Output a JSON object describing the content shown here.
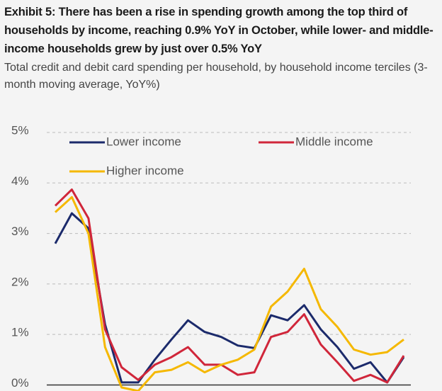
{
  "chart_data": {
    "type": "line",
    "title": "Exhibit 5: There has been a rise in spending growth among the top third of households by income, reaching 0.9% YoY in October, while lower- and middle-income households grew by just over 0.5% YoY",
    "subtitle": "Total credit and debit card spending per household, by household income terciles (3-month moving average, YoY%)",
    "categories": [
      null,
      null,
      null,
      null,
      null,
      null,
      null,
      null,
      null,
      null,
      null,
      null,
      null,
      null,
      null,
      null,
      null,
      null,
      null,
      null,
      null,
      null
    ],
    "series": [
      {
        "name": "Lower income",
        "color": "#1b2a6b",
        "values": [
          2.8,
          3.4,
          3.1,
          1.2,
          0.05,
          0.05,
          0.5,
          0.9,
          1.28,
          1.05,
          0.95,
          0.78,
          0.73,
          1.38,
          1.28,
          1.58,
          1.1,
          0.75,
          0.32,
          0.45,
          0.05,
          0.55
        ]
      },
      {
        "name": "Middle income",
        "color": "#d0263a",
        "values": [
          3.55,
          3.87,
          3.3,
          1.1,
          0.35,
          0.1,
          0.4,
          0.55,
          0.75,
          0.4,
          0.4,
          0.2,
          0.25,
          0.95,
          1.05,
          1.4,
          0.8,
          0.45,
          0.08,
          0.2,
          0.05,
          0.58
        ]
      },
      {
        "name": "Higher income",
        "color": "#f5b800",
        "values": [
          3.42,
          3.72,
          3.0,
          0.75,
          -0.05,
          -0.12,
          0.25,
          0.3,
          0.45,
          0.25,
          0.4,
          0.5,
          0.7,
          1.55,
          1.85,
          2.3,
          1.5,
          1.15,
          0.7,
          0.6,
          0.65,
          0.9
        ]
      }
    ],
    "ylim": [
      -0.12,
      5
    ],
    "yticks": [
      {
        "value": 0,
        "label": "0%"
      },
      {
        "value": 1,
        "label": "1%"
      },
      {
        "value": 2,
        "label": "2%"
      },
      {
        "value": 3,
        "label": "3%"
      },
      {
        "value": 4,
        "label": "4%"
      },
      {
        "value": 5,
        "label": "5%"
      }
    ],
    "grid": true,
    "legend": "top"
  }
}
